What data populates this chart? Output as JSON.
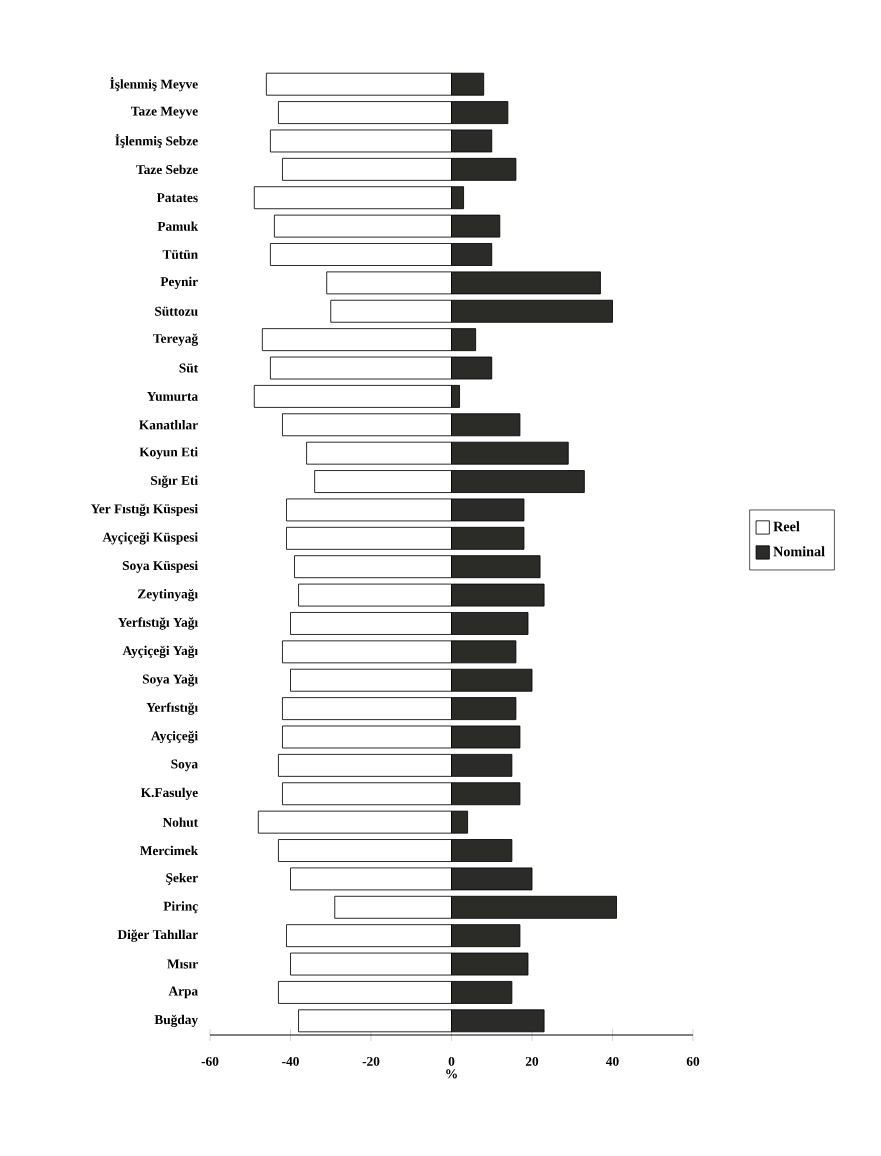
{
  "chart_data": {
    "type": "bar",
    "orientation": "horizontal",
    "xlabel": "%",
    "categories": [
      "İşlenmiş Meyve",
      "Taze Meyve",
      "İşlenmiş Sebze",
      "Taze Sebze",
      "Patates",
      "Pamuk",
      "Tütün",
      "Peynir",
      "Süttozu",
      "Tereyağ",
      "Süt",
      "Yumurta",
      "Kanatlılar",
      "Koyun Eti",
      "Sığır Eti",
      "Yer Fıstığı Küspesi",
      "Ayçiçeği Küspesi",
      "Soya Küspesi",
      "Zeytinyağı",
      "Yerfıstığı Yağı",
      "Ayçiçeği Yağı",
      "Soya Yağı",
      "Yerfıstığı",
      "Ayçiçeği",
      "Soya",
      "K.Fasulye",
      "Nohut",
      "Mercimek",
      "Şeker",
      "Pirinç",
      "Diğer Tahıllar",
      "Mısır",
      "Arpa",
      "Buğday"
    ],
    "series": [
      {
        "name": "Reel",
        "color": "#ffffff",
        "values": [
          -46,
          -43,
          -45,
          -42,
          -49,
          -44,
          -45,
          -31,
          -30,
          -47,
          -45,
          -49,
          -42,
          -36,
          -34,
          -41,
          -41,
          -39,
          -38,
          -40,
          -42,
          -40,
          -42,
          -42,
          -43,
          -42,
          -48,
          -43,
          -40,
          -29,
          -41,
          -40,
          -43,
          -38
        ]
      },
      {
        "name": "Nominal",
        "color": "#2b2b28",
        "values": [
          8,
          14,
          10,
          16,
          3,
          12,
          10,
          37,
          40,
          6,
          10,
          2,
          17,
          29,
          33,
          18,
          18,
          22,
          23,
          19,
          16,
          20,
          16,
          17,
          15,
          17,
          4,
          15,
          20,
          41,
          17,
          19,
          15,
          23
        ]
      }
    ],
    "stacked": true,
    "xlim": [
      -60,
      60
    ],
    "xticks": [
      -60,
      -40,
      -20,
      0,
      20,
      40,
      60
    ],
    "legend": "right"
  }
}
